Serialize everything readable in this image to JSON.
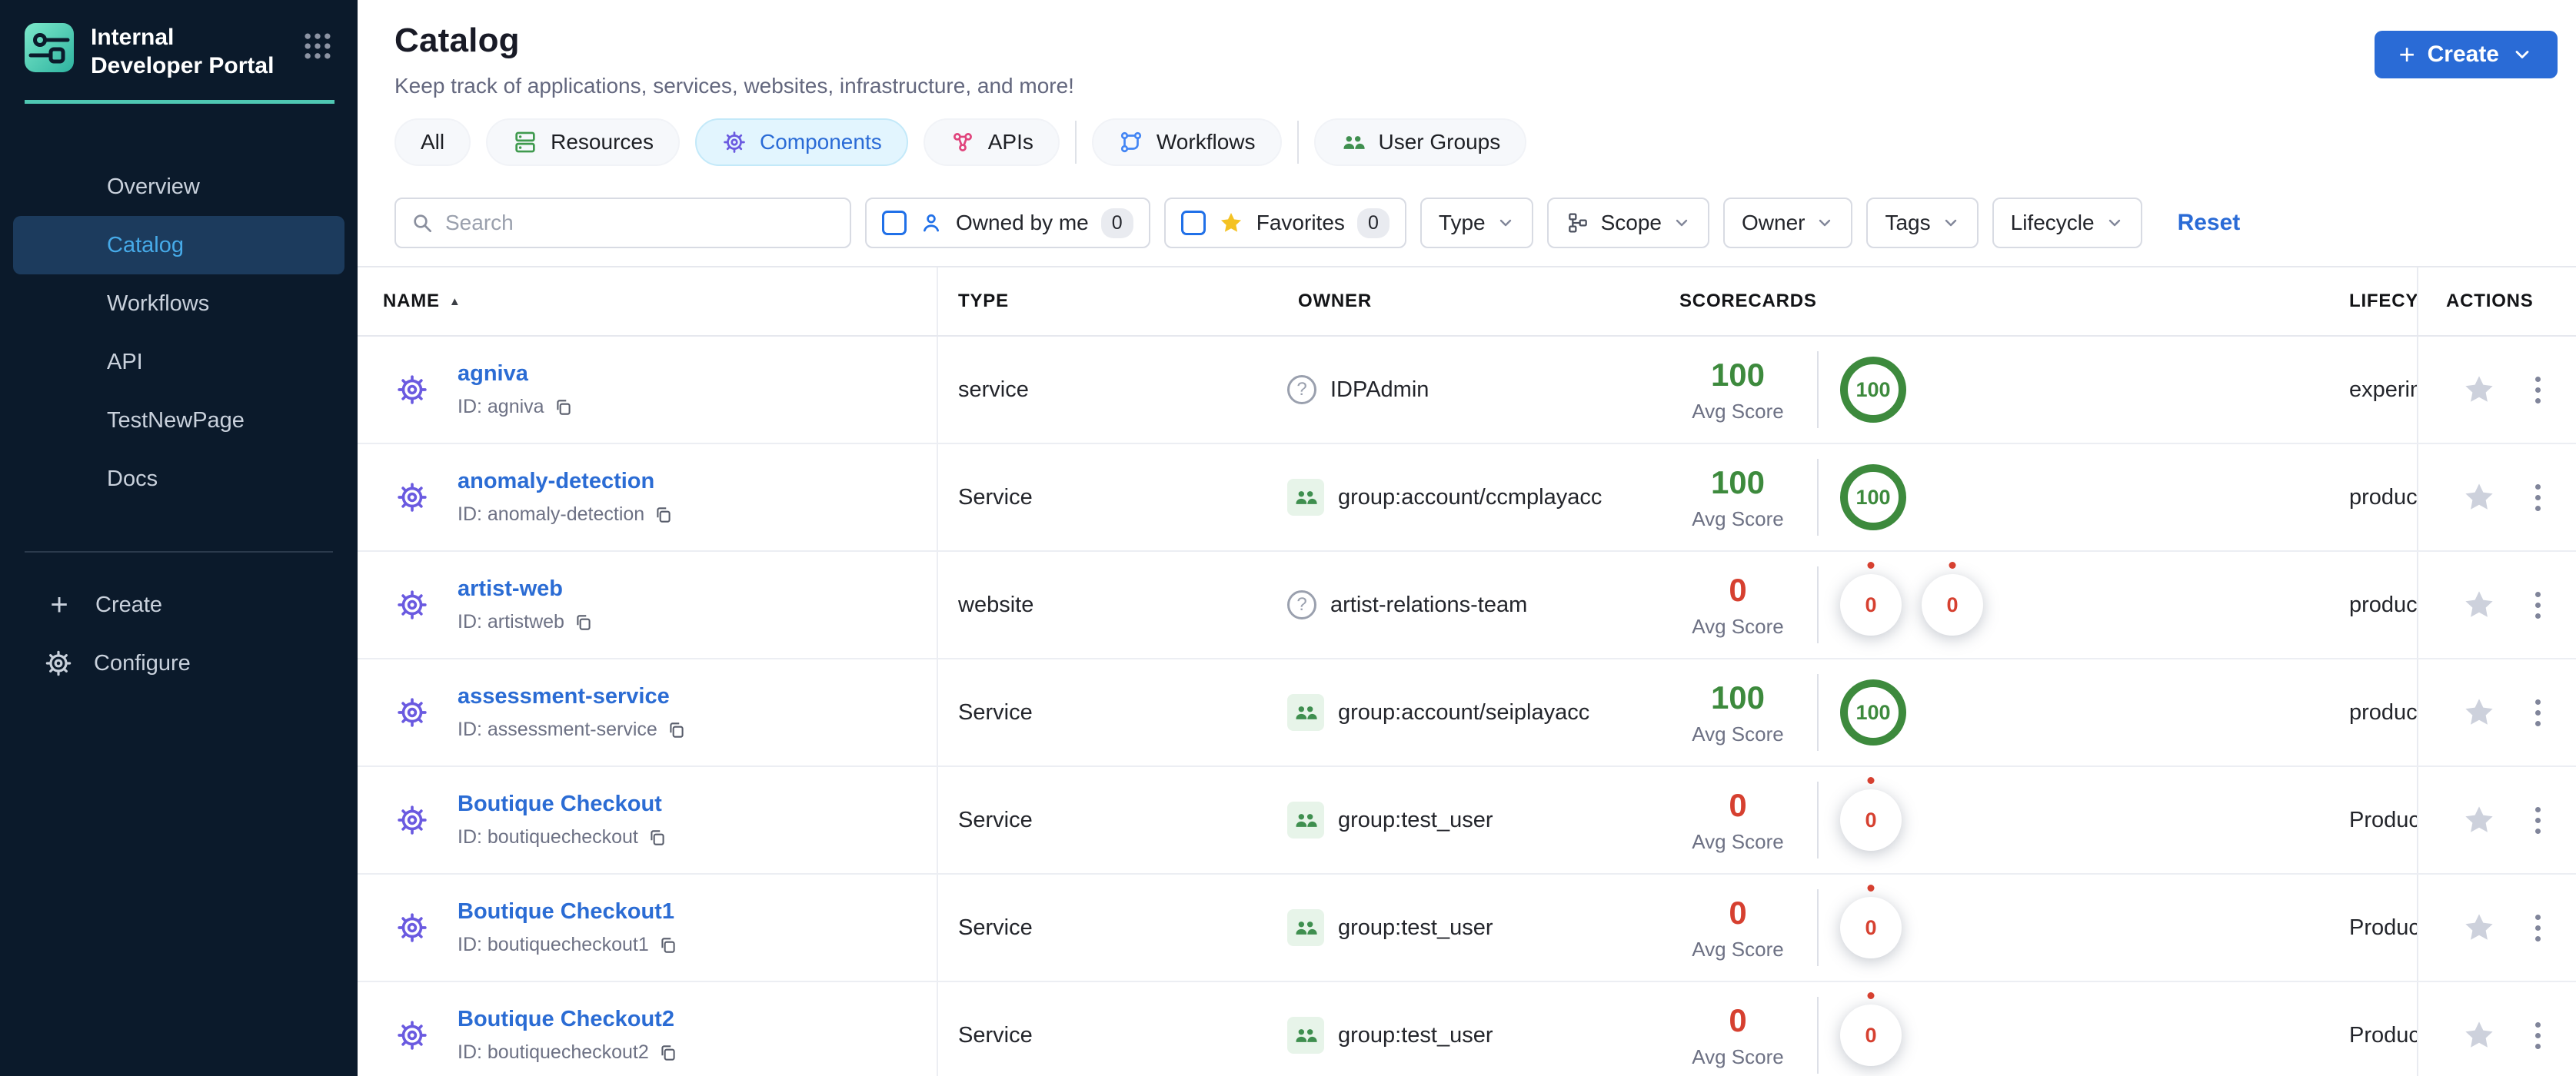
{
  "sidebar": {
    "title": "Internal Developer Portal",
    "items": [
      {
        "label": "Overview",
        "active": false
      },
      {
        "label": "Catalog",
        "active": true
      },
      {
        "label": "Workflows",
        "active": false
      },
      {
        "label": "API",
        "active": false
      },
      {
        "label": "TestNewPage",
        "active": false
      },
      {
        "label": "Docs",
        "active": false
      }
    ],
    "create_label": "Create",
    "configure_label": "Configure"
  },
  "header": {
    "title": "Catalog",
    "subtitle": "Keep track of applications, services, websites, infrastructure, and more!",
    "create_button": "Create"
  },
  "tabs": [
    {
      "label": "All",
      "icon": null,
      "active": false,
      "divider_after": false
    },
    {
      "label": "Resources",
      "icon": "resources-icon",
      "active": false,
      "divider_after": false
    },
    {
      "label": "Components",
      "icon": "components-icon",
      "active": true,
      "divider_after": false
    },
    {
      "label": "APIs",
      "icon": "apis-icon",
      "active": false,
      "divider_after": true
    },
    {
      "label": "Workflows",
      "icon": "workflows-icon",
      "active": false,
      "divider_after": true
    },
    {
      "label": "User Groups",
      "icon": "user-groups-icon",
      "active": false,
      "divider_after": false
    }
  ],
  "filters": {
    "search_placeholder": "Search",
    "owned_by_me": {
      "label": "Owned by me",
      "count": "0"
    },
    "favorites": {
      "label": "Favorites",
      "count": "0"
    },
    "dropdowns": [
      {
        "label": "Type",
        "icon": null
      },
      {
        "label": "Scope",
        "icon": "scope-icon"
      },
      {
        "label": "Owner",
        "icon": null
      },
      {
        "label": "Tags",
        "icon": null
      },
      {
        "label": "Lifecycle",
        "icon": null
      }
    ],
    "reset_label": "Reset"
  },
  "table": {
    "columns": [
      "NAME",
      "TYPE",
      "OWNER",
      "SCORECARDS",
      "LIFECYCLE",
      "ACTIONS"
    ],
    "sort_column": "NAME",
    "avg_score_label": "Avg Score",
    "rows": [
      {
        "name": "agniva",
        "id": "ID: agniva",
        "type": "service",
        "owner": "IDPAdmin",
        "owner_icon": "question",
        "avg_score": "100",
        "rings": [
          "100"
        ],
        "lifecycle": "experimental"
      },
      {
        "name": "anomaly-detection",
        "id": "ID: anomaly-detection",
        "type": "Service",
        "owner": "group:account/ccmplayacc",
        "owner_icon": "group",
        "avg_score": "100",
        "rings": [
          "100"
        ],
        "lifecycle": "production"
      },
      {
        "name": "artist-web",
        "id": "ID: artistweb",
        "type": "website",
        "owner": "artist-relations-team",
        "owner_icon": "question",
        "avg_score": "0",
        "rings": [
          "0",
          "0"
        ],
        "lifecycle": "production"
      },
      {
        "name": "assessment-service",
        "id": "ID: assessment-service",
        "type": "Service",
        "owner": "group:account/seiplayacc",
        "owner_icon": "group",
        "avg_score": "100",
        "rings": [
          "100"
        ],
        "lifecycle": "production"
      },
      {
        "name": "Boutique Checkout",
        "id": "ID: boutiquecheckout",
        "type": "Service",
        "owner": "group:test_user",
        "owner_icon": "group",
        "avg_score": "0",
        "rings": [
          "0"
        ],
        "lifecycle": "Production"
      },
      {
        "name": "Boutique Checkout1",
        "id": "ID: boutiquecheckout1",
        "type": "Service",
        "owner": "group:test_user",
        "owner_icon": "group",
        "avg_score": "0",
        "rings": [
          "0"
        ],
        "lifecycle": "Production"
      },
      {
        "name": "Boutique Checkout2",
        "id": "ID: boutiquecheckout2",
        "type": "Service",
        "owner": "group:test_user",
        "owner_icon": "group",
        "avg_score": "0",
        "rings": [
          "0"
        ],
        "lifecycle": "Production"
      }
    ]
  },
  "colors": {
    "accent_blue": "#2a6bd6",
    "link_blue": "#2b6cd4",
    "teal": "#4fc8b3",
    "green": "#3d8a3d",
    "red": "#d64030",
    "gear_purple": "#6a5ae0",
    "sidebar_bg": "#0b1a2b",
    "sidebar_active_bg": "#1c3b5d",
    "sidebar_active_text": "#46aae8",
    "active_tab_bg": "#e2f5fe",
    "star_yellow": "#f4c223",
    "checkbox_blue": "#2070e8",
    "owner_group_green": "#3f8f4f"
  }
}
